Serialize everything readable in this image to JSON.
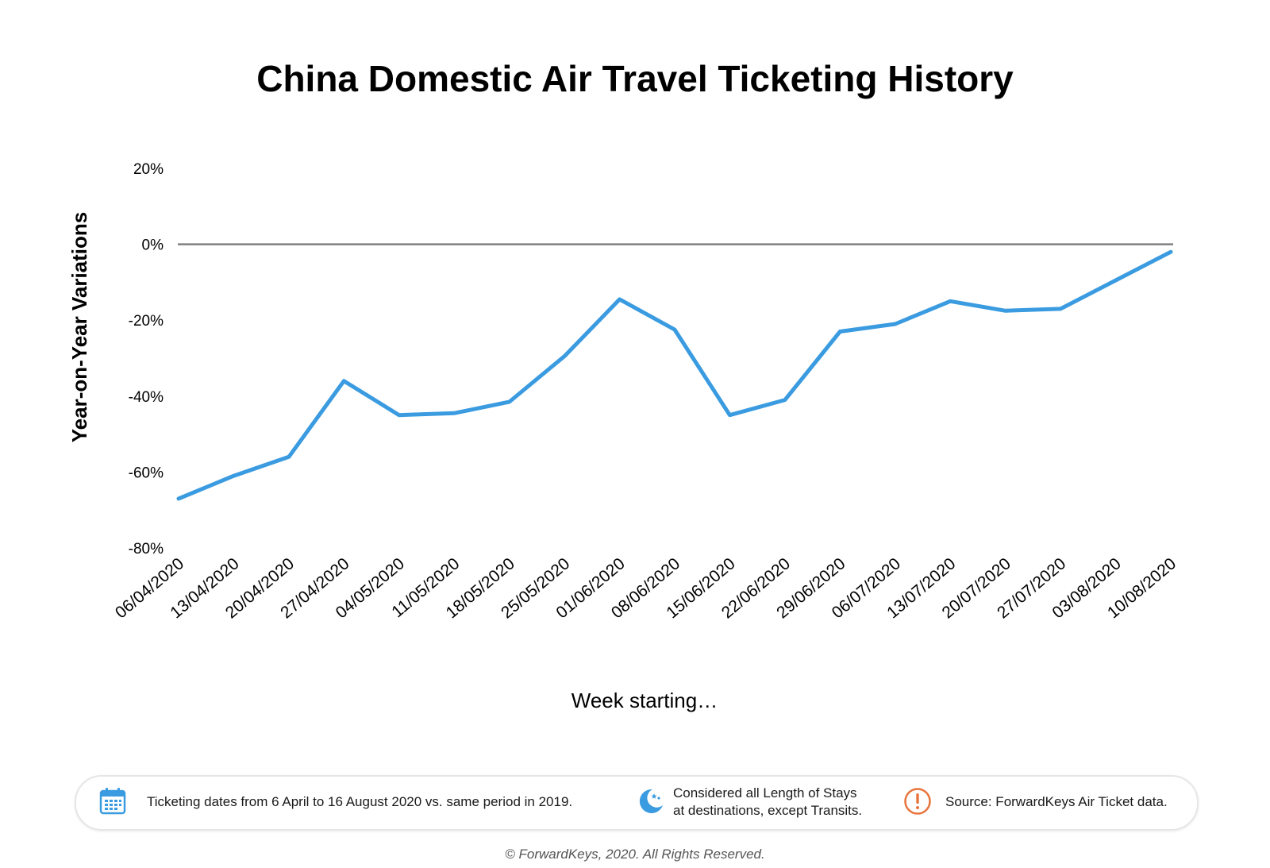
{
  "chart_data": {
    "type": "line",
    "title": "China Domestic Air Travel Ticketing History",
    "xlabel": "Week starting…",
    "ylabel": "Year-on-Year Variations",
    "categories": [
      "06/04/2020",
      "13/04/2020",
      "20/04/2020",
      "27/04/2020",
      "04/05/2020",
      "11/05/2020",
      "18/05/2020",
      "25/05/2020",
      "01/06/2020",
      "08/06/2020",
      "15/06/2020",
      "22/06/2020",
      "29/06/2020",
      "06/07/2020",
      "13/07/2020",
      "20/07/2020",
      "27/07/2020",
      "03/08/2020",
      "10/08/2020"
    ],
    "series": [
      {
        "values": [
          -67,
          -61,
          -56,
          -36,
          -45,
          -44.5,
          -41.5,
          -29.5,
          -14.5,
          -22.5,
          -45,
          -41,
          -23,
          -21,
          -15,
          -17.5,
          -17,
          -9.5,
          -2
        ],
        "color": "#3a9be0"
      }
    ],
    "yticks": [
      20,
      0,
      -20,
      -40,
      -60,
      -80
    ],
    "ytick_labels": [
      "20%",
      "0%",
      "-20%",
      "-40%",
      "-60%",
      "-80%"
    ],
    "ylim": [
      -80,
      20
    ],
    "zero_line_color": "#808080",
    "grid": false,
    "legend": "none"
  },
  "footer": {
    "item1": {
      "icon": "calendar-icon",
      "text": "Ticketing dates from 6 April to 16 August 2020 vs. same period in 2019.",
      "color": "#3a9be0"
    },
    "item2": {
      "icon": "moon-stars-icon",
      "line1": "Considered all Length of Stays",
      "line2": "at destinations, except Transits.",
      "color": "#3a9be0"
    },
    "item3": {
      "icon": "exclamation-circle-icon",
      "text": "Source: ForwardKeys Air Ticket data.",
      "color": "#e8743b"
    }
  },
  "copyright": "© ForwardKeys, 2020. All Rights Reserved."
}
